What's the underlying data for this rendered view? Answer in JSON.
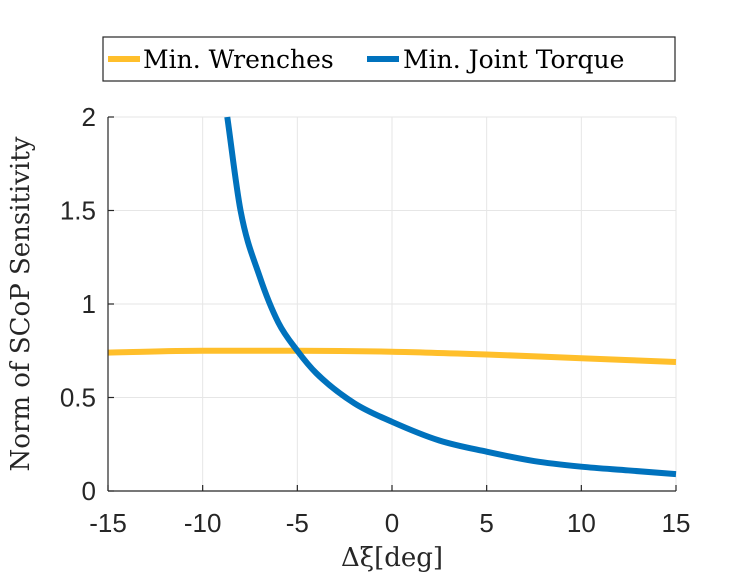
{
  "chart_data": {
    "type": "line",
    "xlabel": "Δξ[deg]",
    "ylabel": "Norm of SCoP Sensitivity",
    "xlim": [
      -15,
      15
    ],
    "ylim": [
      0,
      2
    ],
    "xticks": [
      -15,
      -10,
      -5,
      0,
      5,
      10,
      15
    ],
    "yticks": [
      0,
      0.5,
      1,
      1.5,
      2
    ],
    "xtick_labels": [
      "-15",
      "-10",
      "-5",
      "0",
      "5",
      "10",
      "15"
    ],
    "ytick_labels": [
      "0",
      "0.5",
      "1",
      "1.5",
      "2"
    ],
    "grid": true,
    "legend_position": "top",
    "series": [
      {
        "name": "Min. Wrenches",
        "color": "#FFBF2B",
        "x": [
          -15,
          -10,
          -5,
          0,
          5,
          10,
          15
        ],
        "y": [
          0.74,
          0.75,
          0.75,
          0.745,
          0.73,
          0.71,
          0.69
        ]
      },
      {
        "name": "Min. Joint Torque",
        "color": "#0072BD",
        "x": [
          -8.7,
          -8,
          -7,
          -6,
          -5,
          -4,
          -2,
          0,
          2.5,
          5,
          7.5,
          10,
          12.5,
          15
        ],
        "y": [
          2.0,
          1.5,
          1.15,
          0.9,
          0.75,
          0.63,
          0.47,
          0.37,
          0.27,
          0.21,
          0.16,
          0.13,
          0.11,
          0.09
        ]
      }
    ]
  }
}
